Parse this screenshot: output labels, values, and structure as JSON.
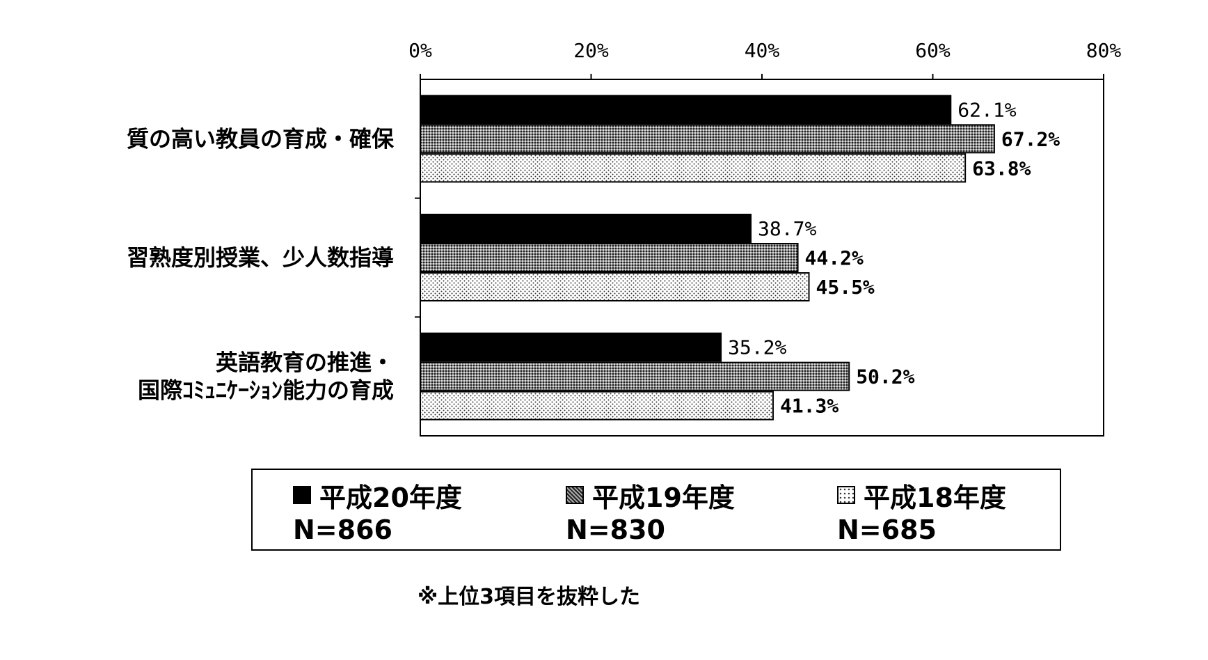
{
  "chart_data": {
    "type": "bar",
    "orientation": "horizontal",
    "title": "",
    "xlabel": "",
    "ylabel": "",
    "xlim": [
      0,
      80
    ],
    "x_ticks": [
      "0%",
      "20%",
      "40%",
      "60%",
      "80%"
    ],
    "grid": false,
    "legend_position": "bottom",
    "categories": [
      [
        "質の高い教員の育成・確保"
      ],
      [
        "習熟度別授業、少人数指導"
      ],
      [
        "英語教育の推進・",
        "国際ｺﾐｭﾆｹｰｼｮﾝ能力の育成"
      ]
    ],
    "series": [
      {
        "name": "平成20年度",
        "n_label": "N=866",
        "pattern": "solid",
        "color": "#000000",
        "values": [
          62.1,
          38.7,
          35.2
        ],
        "labels": [
          "62.1%",
          "38.7%",
          "35.2%"
        ]
      },
      {
        "name": "平成19年度",
        "n_label": "N=830",
        "pattern": "dense-dots",
        "color": "#555555",
        "values": [
          67.2,
          44.2,
          50.2
        ],
        "labels": [
          "67.2%",
          "44.2%",
          "50.2%"
        ]
      },
      {
        "name": "平成18年度",
        "n_label": "N=685",
        "pattern": "sparse-dots",
        "color": "#bbbbbb",
        "values": [
          63.8,
          45.5,
          41.3
        ],
        "labels": [
          "63.8%",
          "45.5%",
          "41.3%"
        ]
      }
    ],
    "note": "※上位3項目を抜粋した"
  }
}
